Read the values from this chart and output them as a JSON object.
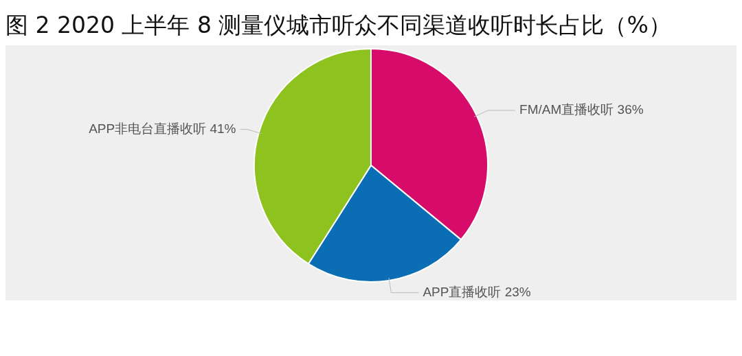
{
  "chart_data": {
    "type": "pie",
    "title": "图 2 2020 上半年 8 测量仪城市听众不同渠道收听时长占比（%）",
    "categories": [
      "FM/AM直播收听",
      "APP直播收听",
      "APP非电台直播收听"
    ],
    "values": [
      36,
      23,
      41
    ],
    "colors": [
      "#d60b6a",
      "#0b6db3",
      "#8dc21f"
    ],
    "value_labels": [
      "36%",
      "23%",
      "41%"
    ],
    "legend": false
  }
}
